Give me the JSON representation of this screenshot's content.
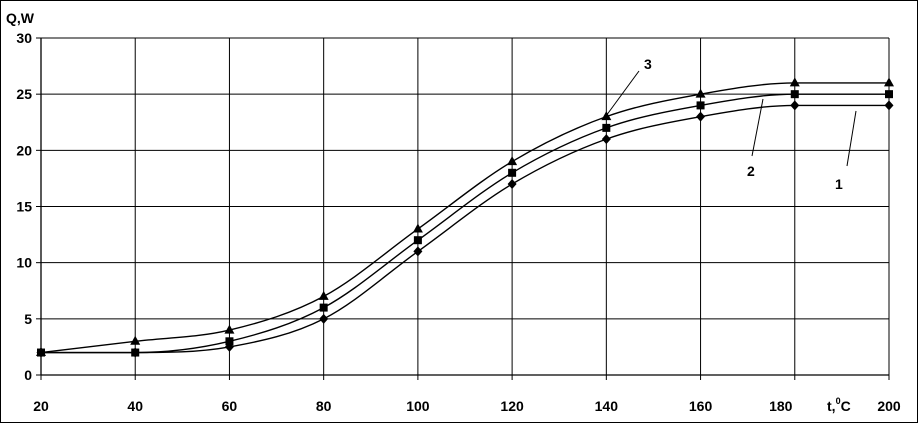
{
  "chart_data": {
    "type": "line",
    "title": "",
    "xlabel": "t,°C",
    "xlabel_base": "t,",
    "xlabel_sup": "0",
    "xlabel_unit": "C",
    "ylabel": "Q,W",
    "xlim": [
      20,
      200
    ],
    "ylim": [
      0,
      30
    ],
    "grid": true,
    "x_ticks": [
      20,
      40,
      60,
      80,
      100,
      120,
      140,
      160,
      180,
      200
    ],
    "y_ticks": [
      0,
      5,
      10,
      15,
      20,
      25,
      30
    ],
    "x": [
      20,
      40,
      60,
      80,
      100,
      120,
      140,
      160,
      180,
      200
    ],
    "series": [
      {
        "name": "1",
        "marker": "diamond",
        "values": [
          2,
          2,
          2.5,
          5,
          11,
          17,
          21,
          23,
          24,
          24
        ]
      },
      {
        "name": "2",
        "marker": "square",
        "values": [
          2,
          2,
          3,
          6,
          12,
          18,
          22,
          24,
          25,
          25
        ]
      },
      {
        "name": "3",
        "marker": "triangle",
        "values": [
          2,
          3,
          4,
          7,
          13,
          19,
          23,
          25,
          26,
          26
        ]
      }
    ],
    "curve_labels": [
      "1",
      "2",
      "3"
    ],
    "colors": {
      "line": "#000000",
      "grid": "#000000",
      "background": "#ffffff"
    }
  }
}
